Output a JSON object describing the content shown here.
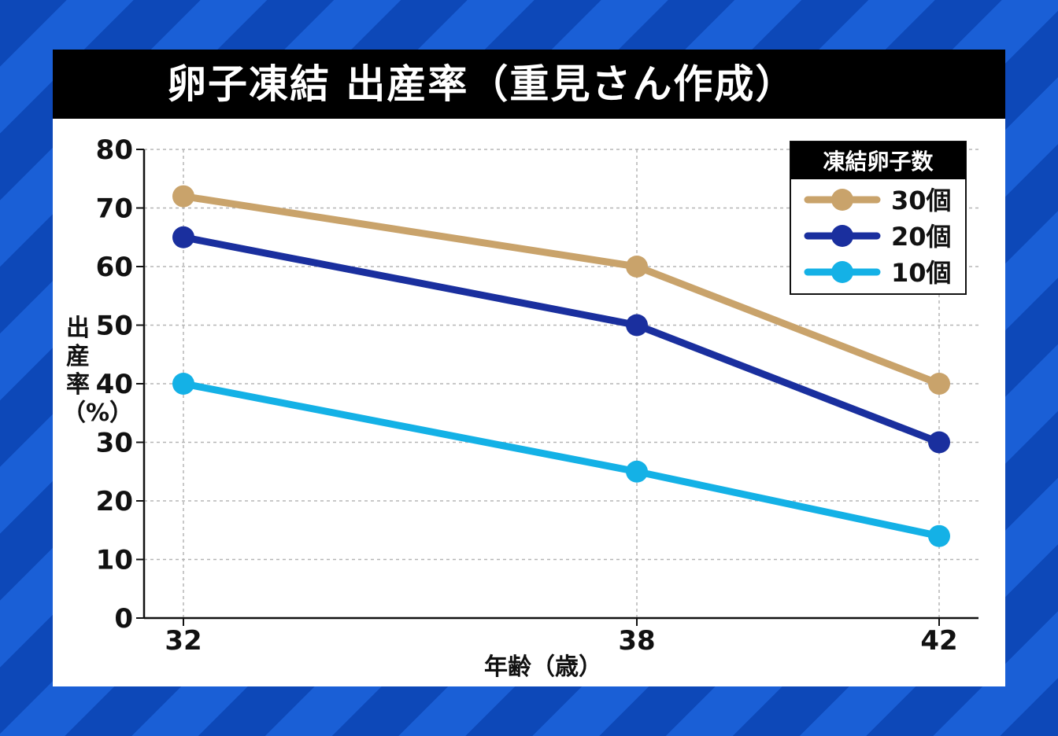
{
  "chart_data": {
    "type": "line",
    "title": "卵子凍結 出産率（重見さん作成）",
    "xlabel": "年齢（歳）",
    "ylabel": "出産率（%）",
    "x": [
      32,
      38,
      42
    ],
    "ylim": [
      0,
      80
    ],
    "yticks": [
      0,
      10,
      20,
      30,
      40,
      50,
      60,
      70,
      80
    ],
    "grid": true,
    "legend": {
      "title": "凍結卵子数",
      "position": "top-right"
    },
    "series": [
      {
        "name": "30個",
        "color": "#c9a36b",
        "values": [
          72,
          60,
          40
        ]
      },
      {
        "name": "20個",
        "color": "#1a2f9e",
        "values": [
          65,
          50,
          30
        ]
      },
      {
        "name": "10個",
        "color": "#14b1e6",
        "values": [
          40,
          25,
          14
        ]
      }
    ]
  }
}
